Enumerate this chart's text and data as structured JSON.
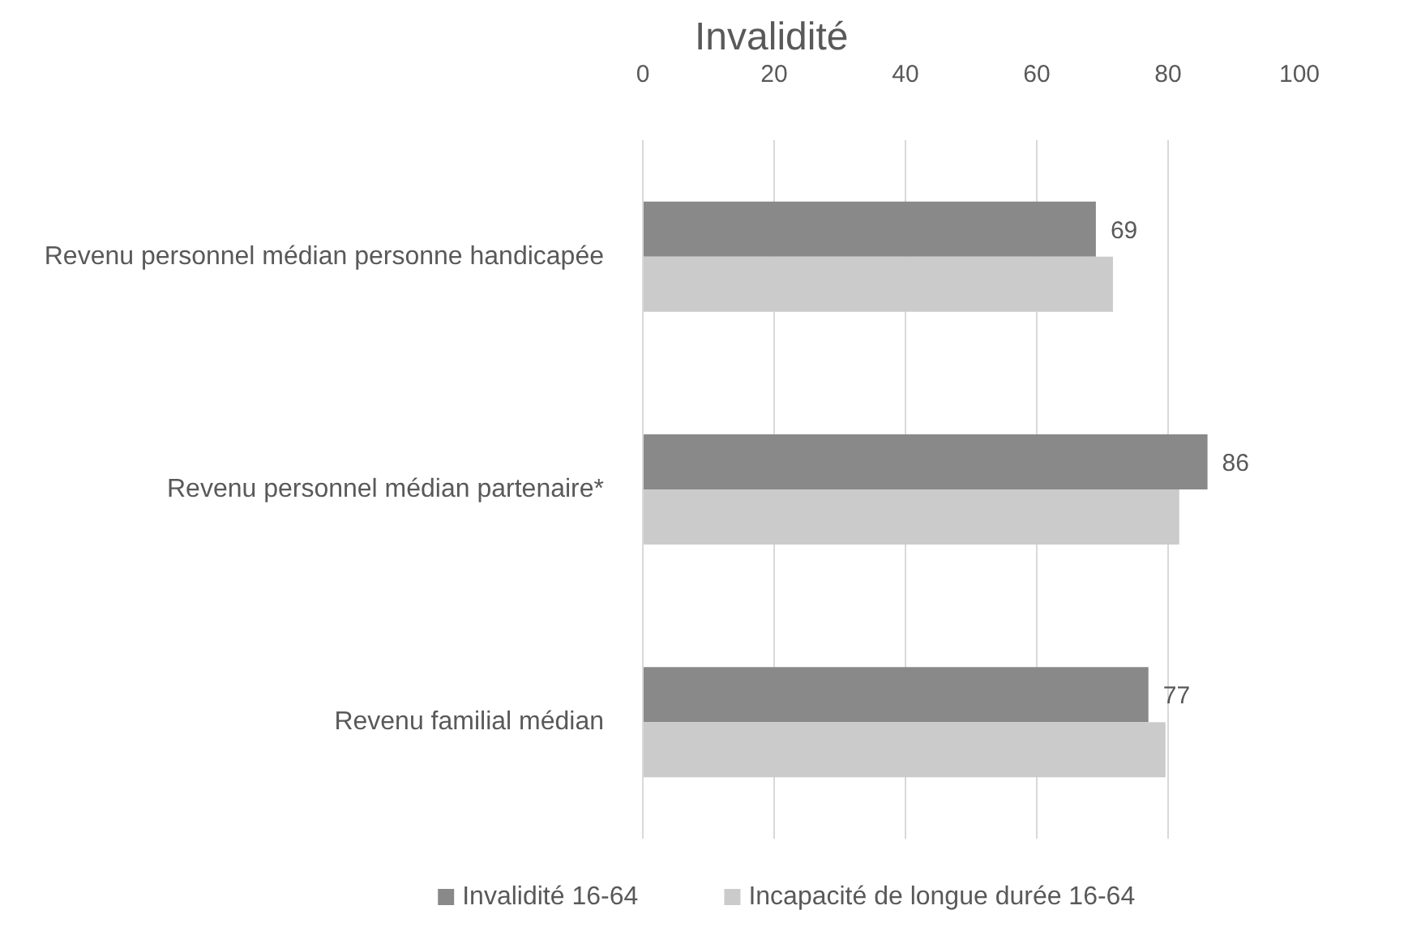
{
  "chart_data": {
    "type": "bar",
    "orientation": "horizontal",
    "title": "Invalidité",
    "categories": [
      "Revenu personnel médian personne handicapée",
      "Revenu personnel médian partenaire*",
      "Revenu familial médian"
    ],
    "series": [
      {
        "name": "Invalidité 16-64",
        "color": "#898989",
        "values": [
          69,
          86,
          77
        ],
        "value_labels": [
          "69",
          "86",
          "77"
        ]
      },
      {
        "name": "Incapacité de longue durée 16-64",
        "color": "#cbcbcb",
        "values": [
          71.6,
          81.7,
          79.6
        ]
      }
    ],
    "xlim": [
      0,
      100
    ],
    "xticks": [
      0,
      20,
      40,
      60,
      80,
      100
    ],
    "grid": "x",
    "legend": "bottom"
  }
}
